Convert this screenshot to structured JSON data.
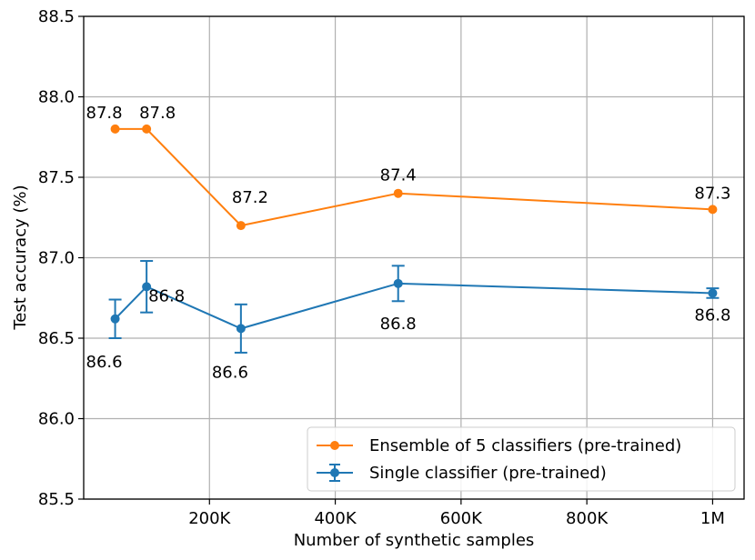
{
  "chart_data": {
    "type": "line",
    "xlabel": "Number of synthetic samples",
    "ylabel": "Test accuracy (%)",
    "xlim": [
      0,
      1050000
    ],
    "ylim": [
      85.5,
      88.5
    ],
    "x_ticks": [
      {
        "value": 200000,
        "label": "200K"
      },
      {
        "value": 400000,
        "label": "400K"
      },
      {
        "value": 600000,
        "label": "600K"
      },
      {
        "value": 800000,
        "label": "800K"
      },
      {
        "value": 1000000,
        "label": "1M"
      }
    ],
    "y_ticks": [
      {
        "value": 85.5,
        "label": "85.5"
      },
      {
        "value": 86.0,
        "label": "86.0"
      },
      {
        "value": 86.5,
        "label": "86.5"
      },
      {
        "value": 87.0,
        "label": "87.0"
      },
      {
        "value": 87.5,
        "label": "87.5"
      },
      {
        "value": 88.0,
        "label": "88.0"
      },
      {
        "value": 88.5,
        "label": "88.5"
      }
    ],
    "grid": true,
    "legend_position": "bottom-right",
    "series": [
      {
        "name": "Ensemble of 5 classifiers (pre-trained)",
        "color": "#ff7f0e",
        "x": [
          50000,
          100000,
          250000,
          500000,
          1000000
        ],
        "y": [
          87.8,
          87.8,
          87.2,
          87.4,
          87.3
        ],
        "error": null,
        "labels": [
          "87.8",
          "87.8",
          "87.2",
          "87.4",
          "87.3"
        ]
      },
      {
        "name": "Single classifier (pre-trained)",
        "color": "#1f77b4",
        "x": [
          50000,
          100000,
          250000,
          500000,
          1000000
        ],
        "y": [
          86.62,
          86.82,
          86.56,
          86.84,
          86.78
        ],
        "error": [
          0.12,
          0.16,
          0.15,
          0.11,
          0.03
        ],
        "labels": [
          "86.6",
          "86.8",
          "86.6",
          "86.8",
          "86.8"
        ]
      }
    ]
  }
}
